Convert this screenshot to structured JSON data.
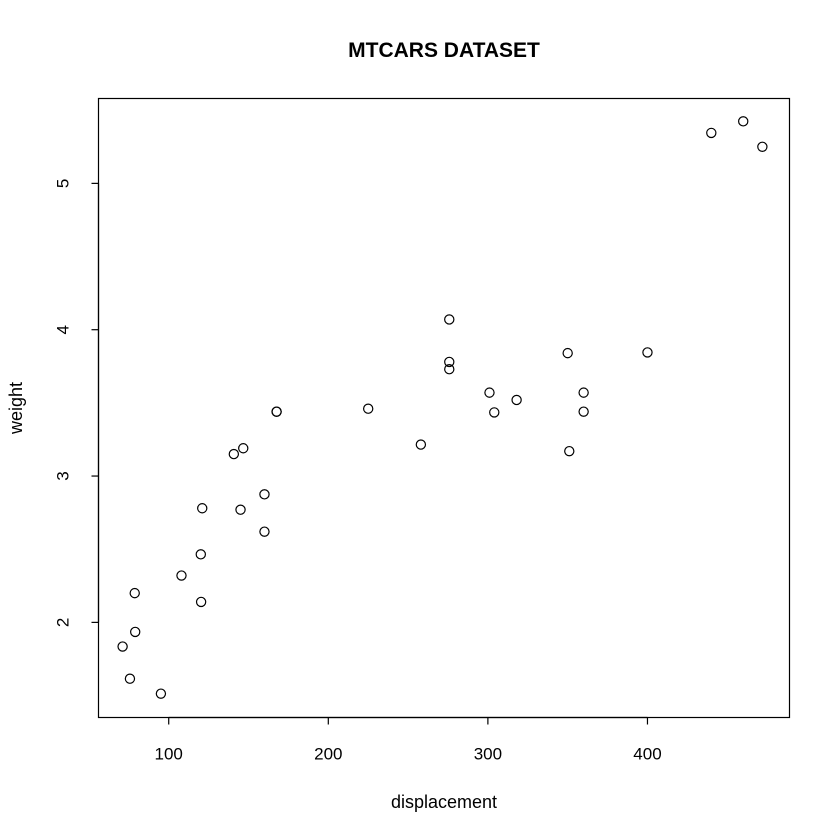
{
  "chart_data": {
    "type": "scatter",
    "title": "MTCARS DATASET",
    "xlabel": "displacement",
    "ylabel": "weight",
    "xlim": [
      56,
      489
    ],
    "ylim": [
      1.35,
      5.58
    ],
    "xticks": [
      100,
      200,
      300,
      400
    ],
    "yticks": [
      2,
      3,
      4,
      5
    ],
    "grid": false,
    "marker": "open-circle",
    "colors": {
      "axis": "#000000",
      "marker": "#000000",
      "background": "#ffffff"
    },
    "points": [
      {
        "x": 160.0,
        "y": 2.62
      },
      {
        "x": 160.0,
        "y": 2.875
      },
      {
        "x": 108.0,
        "y": 2.32
      },
      {
        "x": 258.0,
        "y": 3.215
      },
      {
        "x": 360.0,
        "y": 3.44
      },
      {
        "x": 225.0,
        "y": 3.46
      },
      {
        "x": 360.0,
        "y": 3.57
      },
      {
        "x": 146.7,
        "y": 3.19
      },
      {
        "x": 140.8,
        "y": 3.15
      },
      {
        "x": 167.6,
        "y": 3.44
      },
      {
        "x": 167.6,
        "y": 3.44
      },
      {
        "x": 275.8,
        "y": 4.07
      },
      {
        "x": 275.8,
        "y": 3.73
      },
      {
        "x": 275.8,
        "y": 3.78
      },
      {
        "x": 472.0,
        "y": 5.25
      },
      {
        "x": 460.0,
        "y": 5.424
      },
      {
        "x": 440.0,
        "y": 5.345
      },
      {
        "x": 78.7,
        "y": 2.2
      },
      {
        "x": 75.7,
        "y": 1.615
      },
      {
        "x": 71.1,
        "y": 1.835
      },
      {
        "x": 120.1,
        "y": 2.465
      },
      {
        "x": 318.0,
        "y": 3.52
      },
      {
        "x": 304.0,
        "y": 3.435
      },
      {
        "x": 350.0,
        "y": 3.84
      },
      {
        "x": 400.0,
        "y": 3.845
      },
      {
        "x": 79.0,
        "y": 1.935
      },
      {
        "x": 120.3,
        "y": 2.14
      },
      {
        "x": 95.1,
        "y": 1.513
      },
      {
        "x": 351.0,
        "y": 3.17
      },
      {
        "x": 145.0,
        "y": 2.77
      },
      {
        "x": 301.0,
        "y": 3.57
      },
      {
        "x": 121.0,
        "y": 2.78
      }
    ]
  }
}
